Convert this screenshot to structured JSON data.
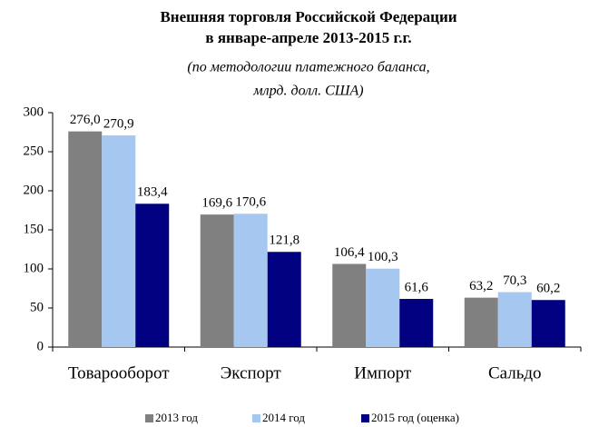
{
  "chart_data": {
    "type": "bar",
    "title": [
      "Внешняя торговля Российской Федерации",
      "в январе-апреле 2013-2015 г.г."
    ],
    "subtitle": [
      "(по  методологии платежного баланса,",
      "млрд. долл. США)"
    ],
    "categories": [
      "Товарооборот",
      "Экспорт",
      "Импорт",
      "Сальдо"
    ],
    "series": [
      {
        "name": "2013 год",
        "color": "#808080",
        "values": [
          276.0,
          169.6,
          106.4,
          63.2
        ],
        "value_labels": [
          "276,0",
          "169,6",
          "106,4",
          "63,2"
        ]
      },
      {
        "name": "2014 год",
        "color": "#a6c8f0",
        "values": [
          270.9,
          170.6,
          100.3,
          70.3
        ],
        "value_labels": [
          "270,9",
          "170,6",
          "100,3",
          "70,3"
        ]
      },
      {
        "name": "2015 год (оценка)",
        "color": "#000080",
        "values": [
          183.4,
          121.8,
          61.6,
          60.2
        ],
        "value_labels": [
          "183,4",
          "121,8",
          "61,6",
          "60,2"
        ]
      }
    ],
    "ylim": [
      0,
      300
    ],
    "yticks": [
      0,
      50,
      100,
      150,
      200,
      250,
      300
    ],
    "grid": false,
    "legend": "bottom"
  }
}
